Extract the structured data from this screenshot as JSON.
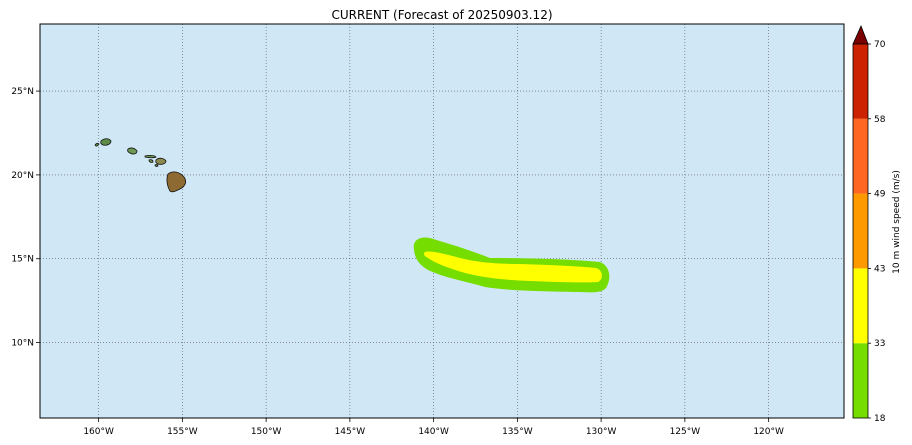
{
  "title": "CURRENT (Forecast of 20250903.12)",
  "map": {
    "lon_range": [
      -163.5,
      -115.5
    ],
    "lat_range": [
      5.5,
      29.0
    ],
    "ocean_color": "#d0e7f6",
    "gridlines": true,
    "lon_ticks": [
      {
        "value": -160,
        "label": "160°W"
      },
      {
        "value": -155,
        "label": "155°W"
      },
      {
        "value": -150,
        "label": "150°W"
      },
      {
        "value": -145,
        "label": "145°W"
      },
      {
        "value": -140,
        "label": "140°W"
      },
      {
        "value": -135,
        "label": "135°W"
      },
      {
        "value": -130,
        "label": "130°W"
      },
      {
        "value": -125,
        "label": "125°W"
      },
      {
        "value": -120,
        "label": "120°W"
      }
    ],
    "lat_ticks": [
      {
        "value": 25,
        "label": "25°N"
      },
      {
        "value": 20,
        "label": "20°N"
      },
      {
        "value": 15,
        "label": "15°N"
      },
      {
        "value": 10,
        "label": "10°N"
      }
    ],
    "features": {
      "islands": "hawaiian-islands",
      "wind_swath_outer_speed": [
        18,
        33
      ],
      "wind_swath_inner_speed": [
        33,
        43
      ]
    }
  },
  "colorbar": {
    "label": "10 m wind speed (m/s)",
    "ticks": [
      "18",
      "33",
      "43",
      "49",
      "58",
      "70"
    ],
    "colors": [
      "#76dd00",
      "#ffff00",
      "#ff9900",
      "#ff6622",
      "#cc2200"
    ],
    "extend_color": "#7a0000"
  }
}
